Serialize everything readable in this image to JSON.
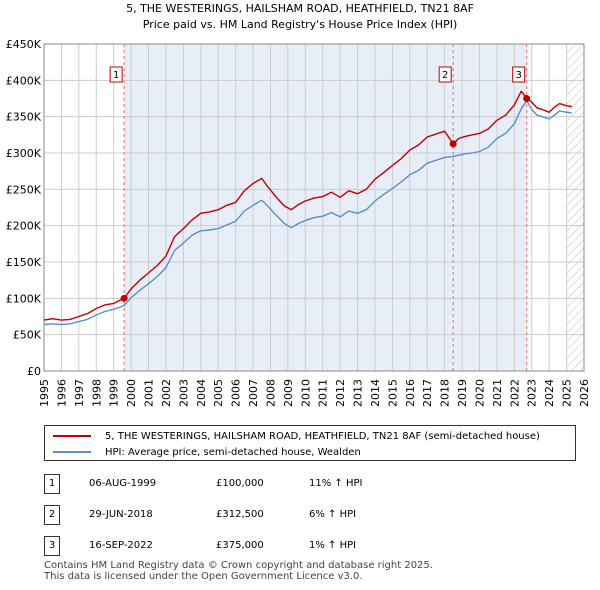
{
  "colors": {
    "property_line": "#c00000",
    "hpi_line": "#5b8fc9",
    "shading": "#e8eef8",
    "dashed_line": "#e07070",
    "grid": "#cccccc"
  },
  "chart_data": {
    "type": "line",
    "title": "5, THE WESTERINGS, HAILSHAM ROAD, HEATHFIELD, TN21 8AF",
    "subtitle": "Price paid vs. HM Land Registry's House Price Index (HPI)",
    "xlim": [
      1995,
      2026
    ],
    "ylim": [
      0,
      450000
    ],
    "y_ticks": [
      0,
      50000,
      100000,
      150000,
      200000,
      250000,
      300000,
      350000,
      400000,
      450000
    ],
    "y_tick_labels": [
      "£0",
      "£50K",
      "£100K",
      "£150K",
      "£200K",
      "£250K",
      "£300K",
      "£350K",
      "£400K",
      "£450K"
    ],
    "x_ticks": [
      1995,
      1996,
      1997,
      1998,
      1999,
      2000,
      2001,
      2002,
      2003,
      2004,
      2005,
      2006,
      2007,
      2008,
      2009,
      2010,
      2011,
      2012,
      2013,
      2014,
      2015,
      2016,
      2017,
      2018,
      2019,
      2020,
      2021,
      2022,
      2023,
      2024,
      2025,
      2026
    ],
    "x_tick_labels": [
      "1995",
      "1996",
      "1997",
      "1998",
      "1999",
      "2000",
      "2001",
      "2002",
      "2003",
      "2004",
      "2005",
      "2006",
      "2007",
      "2008",
      "2009",
      "2010",
      "2011",
      "2012",
      "2013",
      "2014",
      "2015",
      "2016",
      "2017",
      "2018",
      "2019",
      "2020",
      "2021",
      "2022",
      "2023",
      "2024",
      "2025",
      "2026"
    ],
    "shaded_ranges": [
      [
        1999.6,
        2022.71
      ]
    ],
    "hatch_from": 2025.0,
    "series": [
      {
        "name": "5, THE WESTERINGS, HAILSHAM ROAD, HEATHFIELD, TN21 8AF (semi-detached house)",
        "x": [
          1995.0,
          1995.5,
          1996.0,
          1996.5,
          1997.0,
          1997.5,
          1998.0,
          1998.5,
          1999.0,
          1999.6,
          2000.0,
          2000.5,
          2001.0,
          2001.5,
          2002.0,
          2002.5,
          2003.0,
          2003.5,
          2004.0,
          2004.5,
          2005.0,
          2005.5,
          2006.0,
          2006.5,
          2007.0,
          2007.5,
          2007.8,
          2008.3,
          2008.8,
          2009.2,
          2009.6,
          2010.0,
          2010.5,
          2011.0,
          2011.5,
          2012.0,
          2012.5,
          2013.0,
          2013.5,
          2014.0,
          2014.5,
          2015.0,
          2015.5,
          2016.0,
          2016.5,
          2017.0,
          2017.5,
          2018.0,
          2018.49,
          2018.8,
          2019.2,
          2019.6,
          2020.0,
          2020.5,
          2021.0,
          2021.5,
          2022.0,
          2022.4,
          2022.71,
          2023.0,
          2023.3,
          2023.6,
          2024.0,
          2024.3,
          2024.6,
          2025.0,
          2025.3
        ],
        "values": [
          70000,
          72000,
          70000,
          71000,
          75000,
          79000,
          86000,
          91000,
          93000,
          100000,
          113000,
          125000,
          135000,
          145000,
          158000,
          185000,
          196000,
          208000,
          217000,
          219000,
          222000,
          228000,
          232000,
          248000,
          258000,
          265000,
          255000,
          240000,
          227000,
          222000,
          229000,
          234000,
          238000,
          240000,
          246000,
          239000,
          248000,
          244000,
          250000,
          264000,
          273000,
          283000,
          292000,
          304000,
          311000,
          322000,
          326000,
          330000,
          312500,
          320000,
          323000,
          325000,
          327000,
          333000,
          345000,
          352000,
          366000,
          385000,
          375000,
          370000,
          362000,
          360000,
          356000,
          363000,
          368000,
          365000,
          364000
        ]
      },
      {
        "name": "HPI: Average price, semi-detached house, Wealden",
        "x": [
          1995.0,
          1995.5,
          1996.0,
          1996.5,
          1997.0,
          1997.5,
          1998.0,
          1998.5,
          1999.0,
          1999.6,
          2000.0,
          2000.5,
          2001.0,
          2001.5,
          2002.0,
          2002.5,
          2003.0,
          2003.5,
          2004.0,
          2004.5,
          2005.0,
          2005.5,
          2006.0,
          2006.5,
          2007.0,
          2007.5,
          2007.8,
          2008.3,
          2008.8,
          2009.2,
          2009.6,
          2010.0,
          2010.5,
          2011.0,
          2011.5,
          2012.0,
          2012.5,
          2013.0,
          2013.5,
          2014.0,
          2014.5,
          2015.0,
          2015.5,
          2016.0,
          2016.5,
          2017.0,
          2017.5,
          2018.0,
          2018.49,
          2018.8,
          2019.2,
          2019.6,
          2020.0,
          2020.5,
          2021.0,
          2021.5,
          2022.0,
          2022.4,
          2022.71,
          2023.0,
          2023.3,
          2023.6,
          2024.0,
          2024.3,
          2024.6,
          2025.0,
          2025.3
        ],
        "values": [
          64000,
          65000,
          64000,
          65000,
          68000,
          71000,
          77000,
          82000,
          85000,
          90000,
          101000,
          111000,
          120000,
          130000,
          142000,
          166000,
          176000,
          187000,
          193000,
          194000,
          196000,
          201000,
          206000,
          220000,
          228000,
          235000,
          228000,
          215000,
          203000,
          197000,
          203000,
          207000,
          211000,
          213000,
          218000,
          212000,
          220000,
          217000,
          222000,
          234000,
          243000,
          251000,
          260000,
          270000,
          276000,
          286000,
          290000,
          294000,
          295000,
          297000,
          299000,
          300000,
          302000,
          308000,
          320000,
          327000,
          340000,
          361000,
          372000,
          360000,
          352000,
          350000,
          347000,
          352000,
          358000,
          356000,
          355000
        ]
      }
    ],
    "transactions": [
      {
        "label": "1",
        "x": 1999.6,
        "value": 100000
      },
      {
        "label": "2",
        "x": 2018.49,
        "value": 312500
      },
      {
        "label": "3",
        "x": 2022.71,
        "value": 375000
      }
    ]
  },
  "legend": {
    "property": "5, THE WESTERINGS, HAILSHAM ROAD, HEATHFIELD, TN21 8AF (semi-detached house)",
    "hpi": "HPI: Average price, semi-detached house, Wealden"
  },
  "table": [
    {
      "num": "1",
      "date": "06-AUG-1999",
      "price": "£100,000",
      "hpi": "11% ↑ HPI"
    },
    {
      "num": "2",
      "date": "29-JUN-2018",
      "price": "£312,500",
      "hpi": "6% ↑ HPI"
    },
    {
      "num": "3",
      "date": "16-SEP-2022",
      "price": "£375,000",
      "hpi": "1% ↑ HPI"
    }
  ],
  "footer": {
    "line1": "Contains HM Land Registry data © Crown copyright and database right 2025.",
    "line2": "This data is licensed under the Open Government Licence v3.0."
  }
}
